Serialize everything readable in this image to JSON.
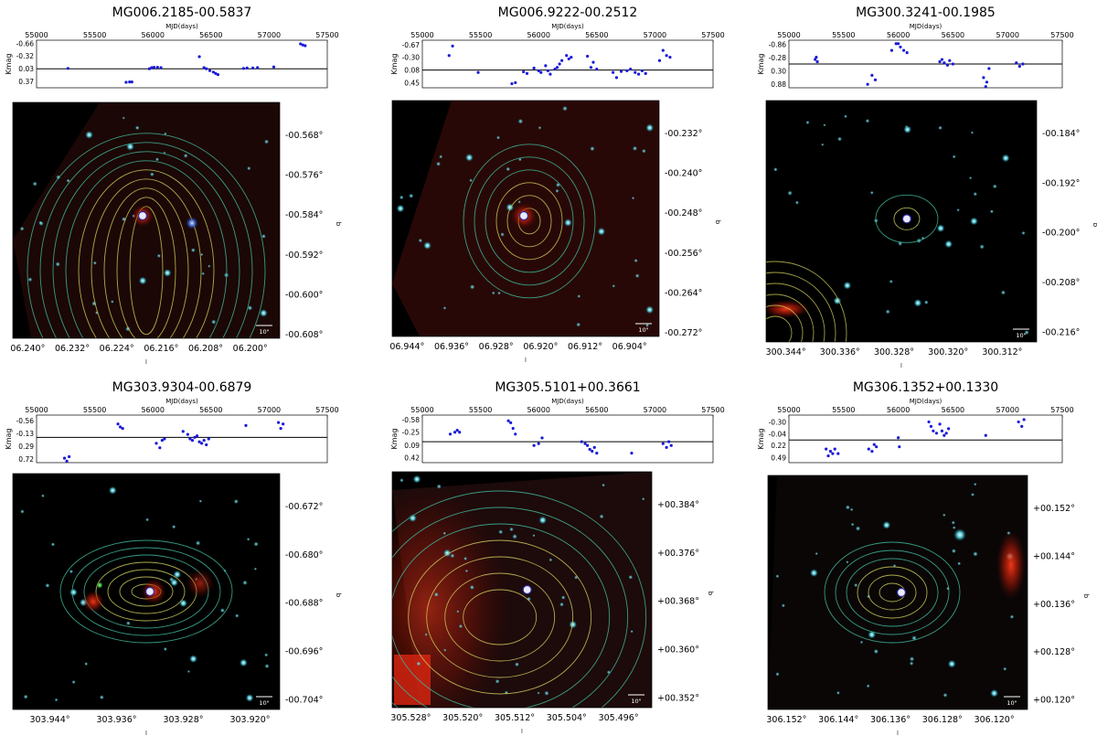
{
  "chart_data": [
    {
      "type": "scatter",
      "title": "MG006.2185-00.5837",
      "lightcurve": {
        "xlabel": "MJD(days)",
        "ylabel": "Kmag",
        "x_ticks": [
          "55000",
          "55500",
          "56000",
          "56500",
          "57000",
          "57500"
        ],
        "xlim": [
          55000,
          57500
        ],
        "y_ticks": [
          "-0.66",
          "-0.32",
          "0.03",
          "0.37"
        ],
        "ylim": [
          0.55,
          -0.75
        ],
        "reference_line": 0.03,
        "points": [
          [
            55270,
            0.02
          ],
          [
            55770,
            0.4
          ],
          [
            55800,
            0.39
          ],
          [
            55820,
            0.39
          ],
          [
            55970,
            0.03
          ],
          [
            55990,
            0.0
          ],
          [
            56010,
            -0.01
          ],
          [
            56040,
            -0.01
          ],
          [
            56070,
            0.0
          ],
          [
            56400,
            -0.3
          ],
          [
            56440,
            0.0
          ],
          [
            56460,
            0.03
          ],
          [
            56490,
            0.08
          ],
          [
            56520,
            0.12
          ],
          [
            56540,
            0.16
          ],
          [
            56560,
            0.19
          ],
          [
            56780,
            0.02
          ],
          [
            56810,
            0.01
          ],
          [
            56860,
            0.01
          ],
          [
            56900,
            0.0
          ],
          [
            57040,
            -0.02
          ],
          [
            57270,
            -0.65
          ],
          [
            57290,
            -0.62
          ],
          [
            57310,
            -0.6
          ]
        ]
      },
      "image": {
        "xlabel": "l",
        "ylabel": "b",
        "x_ticks": [
          "06.240°",
          "06.232°",
          "06.224°",
          "06.216°",
          "06.208°",
          "06.200°"
        ],
        "y_ticks": [
          "-00.568°",
          "-00.576°",
          "-00.584°",
          "-00.592°",
          "-00.600°",
          "-00.608°"
        ],
        "scale_label": "10\""
      }
    },
    {
      "type": "scatter",
      "title": "MG006.9222-00.2512",
      "lightcurve": {
        "xlabel": "MJD(days)",
        "ylabel": "Kmag",
        "x_ticks": [
          "55000",
          "55500",
          "56000",
          "56500",
          "57000",
          "57500"
        ],
        "xlim": [
          55000,
          57500
        ],
        "y_ticks": [
          "-0.67",
          "-0.30",
          "0.08",
          "0.45"
        ],
        "ylim": [
          0.6,
          -0.8
        ],
        "reference_line": 0.08,
        "points": [
          [
            55230,
            -0.35
          ],
          [
            55260,
            -0.63
          ],
          [
            55480,
            0.15
          ],
          [
            55770,
            0.48
          ],
          [
            55800,
            0.45
          ],
          [
            55870,
            0.13
          ],
          [
            55900,
            0.18
          ],
          [
            55960,
            0.02
          ],
          [
            56000,
            0.1
          ],
          [
            56020,
            0.15
          ],
          [
            56060,
            -0.05
          ],
          [
            56080,
            0.1
          ],
          [
            56100,
            0.2
          ],
          [
            56140,
            0.05
          ],
          [
            56160,
            0.0
          ],
          [
            56180,
            -0.1
          ],
          [
            56200,
            -0.2
          ],
          [
            56240,
            -0.35
          ],
          [
            56260,
            -0.25
          ],
          [
            56280,
            -0.3
          ],
          [
            56420,
            -0.33
          ],
          [
            56450,
            0.0
          ],
          [
            56470,
            -0.15
          ],
          [
            56500,
            0.05
          ],
          [
            56640,
            0.15
          ],
          [
            56670,
            0.3
          ],
          [
            56710,
            0.12
          ],
          [
            56760,
            0.1
          ],
          [
            56790,
            0.05
          ],
          [
            56830,
            0.15
          ],
          [
            56860,
            0.2
          ],
          [
            56890,
            0.1
          ],
          [
            56920,
            0.18
          ],
          [
            57040,
            -0.2
          ],
          [
            57070,
            -0.5
          ],
          [
            57100,
            -0.35
          ],
          [
            57130,
            -0.3
          ]
        ]
      },
      "image": {
        "xlabel": "l",
        "ylabel": "b",
        "x_ticks": [
          "06.944°",
          "06.936°",
          "06.928°",
          "06.920°",
          "06.912°",
          "06.904°"
        ],
        "y_ticks": [
          "-00.232°",
          "-00.240°",
          "-00.248°",
          "-00.256°",
          "-00.264°",
          "-00.272°"
        ],
        "scale_label": "10\""
      }
    },
    {
      "type": "scatter",
      "title": "MG300.3241-00.1985",
      "lightcurve": {
        "xlabel": "MJD(days)",
        "ylabel": "Kmag",
        "x_ticks": [
          "55000",
          "55500",
          "56000",
          "56500",
          "57000",
          "57500"
        ],
        "xlim": [
          55000,
          57500
        ],
        "y_ticks": [
          "-0.86",
          "-0.28",
          "0.30",
          "0.88"
        ],
        "ylim": [
          1.05,
          -1.05
        ],
        "reference_line": 0.0,
        "points": [
          [
            55240,
            -0.2
          ],
          [
            55250,
            -0.3
          ],
          [
            55260,
            -0.1
          ],
          [
            55720,
            0.9
          ],
          [
            55760,
            0.5
          ],
          [
            55790,
            0.7
          ],
          [
            55940,
            -0.6
          ],
          [
            55980,
            -0.9
          ],
          [
            56000,
            -0.9
          ],
          [
            56020,
            -0.75
          ],
          [
            56050,
            -0.6
          ],
          [
            56080,
            -0.5
          ],
          [
            56380,
            -0.1
          ],
          [
            56400,
            -0.2
          ],
          [
            56420,
            -0.05
          ],
          [
            56450,
            0.05
          ],
          [
            56470,
            -0.15
          ],
          [
            56500,
            0.0
          ],
          [
            56780,
            0.6
          ],
          [
            56800,
            1.0
          ],
          [
            56810,
            0.8
          ],
          [
            56830,
            0.2
          ],
          [
            57080,
            -0.05
          ],
          [
            57110,
            0.1
          ],
          [
            57140,
            0.0
          ]
        ]
      },
      "image": {
        "xlabel": "l",
        "ylabel": "b",
        "x_ticks": [
          "300.344°",
          "300.336°",
          "300.328°",
          "300.320°",
          "300.312°"
        ],
        "y_ticks": [
          "-00.184°",
          "-00.192°",
          "-00.200°",
          "-00.208°",
          "-00.216°"
        ],
        "scale_label": "10\""
      }
    },
    {
      "type": "scatter",
      "title": "MG303.9304-00.6879",
      "lightcurve": {
        "xlabel": "MJD(days)",
        "ylabel": "Kmag",
        "x_ticks": [
          "55000",
          "55500",
          "56000",
          "56500",
          "57000",
          "57500"
        ],
        "xlim": [
          55000,
          57500
        ],
        "y_ticks": [
          "-0.56",
          "-0.13",
          "0.29",
          "0.72"
        ],
        "ylim": [
          0.85,
          -0.75
        ],
        "reference_line": 0.0,
        "points": [
          [
            55240,
            0.7
          ],
          [
            55260,
            0.8
          ],
          [
            55280,
            0.65
          ],
          [
            55700,
            -0.45
          ],
          [
            55720,
            -0.35
          ],
          [
            55740,
            -0.3
          ],
          [
            56030,
            0.2
          ],
          [
            56060,
            0.35
          ],
          [
            56080,
            0.1
          ],
          [
            56100,
            0.05
          ],
          [
            56260,
            -0.2
          ],
          [
            56300,
            -0.1
          ],
          [
            56320,
            0.05
          ],
          [
            56340,
            0.1
          ],
          [
            56360,
            0.0
          ],
          [
            56380,
            -0.05
          ],
          [
            56400,
            0.15
          ],
          [
            56420,
            0.2
          ],
          [
            56440,
            0.1
          ],
          [
            56460,
            0.25
          ],
          [
            56480,
            0.05
          ],
          [
            56800,
            -0.4
          ],
          [
            57080,
            -0.5
          ],
          [
            57100,
            -0.3
          ],
          [
            57120,
            -0.45
          ]
        ]
      },
      "image": {
        "xlabel": "l",
        "ylabel": "b",
        "x_ticks": [
          "303.944°",
          "303.936°",
          "303.928°",
          "303.920°"
        ],
        "y_ticks": [
          "-00.672°",
          "-00.680°",
          "-00.688°",
          "-00.696°",
          "-00.704°"
        ],
        "scale_label": "10\""
      }
    },
    {
      "type": "scatter",
      "title": "MG305.5101+00.3661",
      "lightcurve": {
        "xlabel": "MJD(days)",
        "ylabel": "Kmag",
        "x_ticks": [
          "55000",
          "55500",
          "56000",
          "56500",
          "57000",
          "57500"
        ],
        "xlim": [
          55000,
          57500
        ],
        "y_ticks": [
          "-0.58",
          "-0.25",
          "0.09",
          "0.42"
        ],
        "ylim": [
          0.55,
          -0.7
        ],
        "reference_line": 0.0,
        "points": [
          [
            55240,
            -0.2
          ],
          [
            55280,
            -0.25
          ],
          [
            55300,
            -0.3
          ],
          [
            55320,
            -0.25
          ],
          [
            55740,
            -0.55
          ],
          [
            55760,
            -0.5
          ],
          [
            55780,
            -0.35
          ],
          [
            55800,
            -0.2
          ],
          [
            55960,
            0.1
          ],
          [
            56000,
            0.05
          ],
          [
            56030,
            -0.1
          ],
          [
            56370,
            0.0
          ],
          [
            56400,
            0.05
          ],
          [
            56420,
            0.1
          ],
          [
            56440,
            0.2
          ],
          [
            56460,
            0.25
          ],
          [
            56480,
            0.15
          ],
          [
            56500,
            0.3
          ],
          [
            56800,
            0.3
          ],
          [
            57070,
            0.05
          ],
          [
            57100,
            0.15
          ],
          [
            57120,
            0.0
          ],
          [
            57140,
            0.1
          ]
        ]
      },
      "image": {
        "xlabel": "l",
        "ylabel": "b",
        "x_ticks": [
          "305.528°",
          "305.520°",
          "305.512°",
          "305.504°",
          "305.496°"
        ],
        "y_ticks": [
          "+00.384°",
          "+00.376°",
          "+00.368°",
          "+00.360°",
          "+00.352°"
        ],
        "scale_label": "10\""
      }
    },
    {
      "type": "scatter",
      "title": "MG306.1352+00.1330",
      "lightcurve": {
        "xlabel": "MJD(days)",
        "ylabel": "Kmag",
        "x_ticks": [
          "55000",
          "55500",
          "56000",
          "56500",
          "57000",
          "57500"
        ],
        "xlim": [
          55000,
          57500
        ],
        "y_ticks": [
          "-0.30",
          "-0.04",
          "0.22",
          "0.49"
        ],
        "ylim": [
          0.6,
          -0.45
        ],
        "reference_line": 0.1,
        "points": [
          [
            55340,
            0.3
          ],
          [
            55360,
            0.45
          ],
          [
            55380,
            0.35
          ],
          [
            55400,
            0.4
          ],
          [
            55420,
            0.3
          ],
          [
            55450,
            0.4
          ],
          [
            55730,
            0.3
          ],
          [
            55760,
            0.35
          ],
          [
            55780,
            0.2
          ],
          [
            55800,
            0.25
          ],
          [
            56000,
            0.05
          ],
          [
            56010,
            0.25
          ],
          [
            56280,
            -0.3
          ],
          [
            56300,
            -0.2
          ],
          [
            56320,
            -0.1
          ],
          [
            56350,
            -0.05
          ],
          [
            56380,
            -0.25
          ],
          [
            56400,
            -0.1
          ],
          [
            56420,
            0.0
          ],
          [
            56440,
            -0.05
          ],
          [
            56460,
            -0.15
          ],
          [
            56800,
            0.0
          ],
          [
            57100,
            -0.3
          ],
          [
            57130,
            -0.2
          ],
          [
            57150,
            -0.35
          ]
        ]
      },
      "image": {
        "xlabel": "l",
        "ylabel": "b",
        "x_ticks": [
          "306.152°",
          "306.144°",
          "306.136°",
          "306.128°",
          "306.120°"
        ],
        "y_ticks": [
          "+00.152°",
          "+00.144°",
          "+00.136°",
          "+00.128°",
          "+00.120°"
        ],
        "scale_label": "10\""
      }
    }
  ],
  "colors": {
    "points": "#1a1ad8",
    "reference_line": "#000000",
    "image_background": "#000000",
    "contour": "#c9c85a",
    "contour_outer": "#3fb59a",
    "nebula": "#d42410",
    "star": "#5fd6e0"
  }
}
